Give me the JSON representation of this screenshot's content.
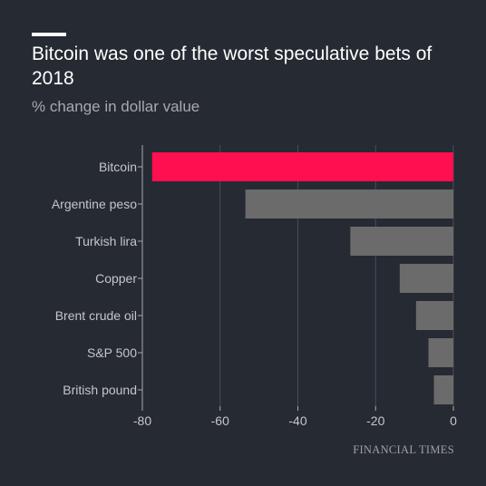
{
  "header": {
    "title": "Bitcoin was one of the worst speculative bets of 2018",
    "subtitle": "% change in dollar value"
  },
  "source": "FINANCIAL TIMES",
  "colors": {
    "background": "#262a33",
    "highlight": "#ff0f4f",
    "bar": "#6b6b6b",
    "grid": "#4a4d56",
    "axis": "#a9aaae"
  },
  "chart_data": {
    "type": "bar",
    "orientation": "horizontal",
    "title": "Bitcoin was one of the worst speculative bets of 2018",
    "subtitle": "% change in dollar value",
    "categories": [
      "Bitcoin",
      "Argentine peso",
      "Turkish lira",
      "Copper",
      "Brent crude oil",
      "S&P 500",
      "British pound"
    ],
    "values": [
      -77.5,
      -53.5,
      -26.5,
      -13.8,
      -9.6,
      -6.4,
      -5.0
    ],
    "highlighted": "Bitcoin",
    "xlim": [
      -80,
      0
    ],
    "xticks": [
      -80,
      -60,
      -40,
      -20,
      0
    ],
    "grid": true
  }
}
